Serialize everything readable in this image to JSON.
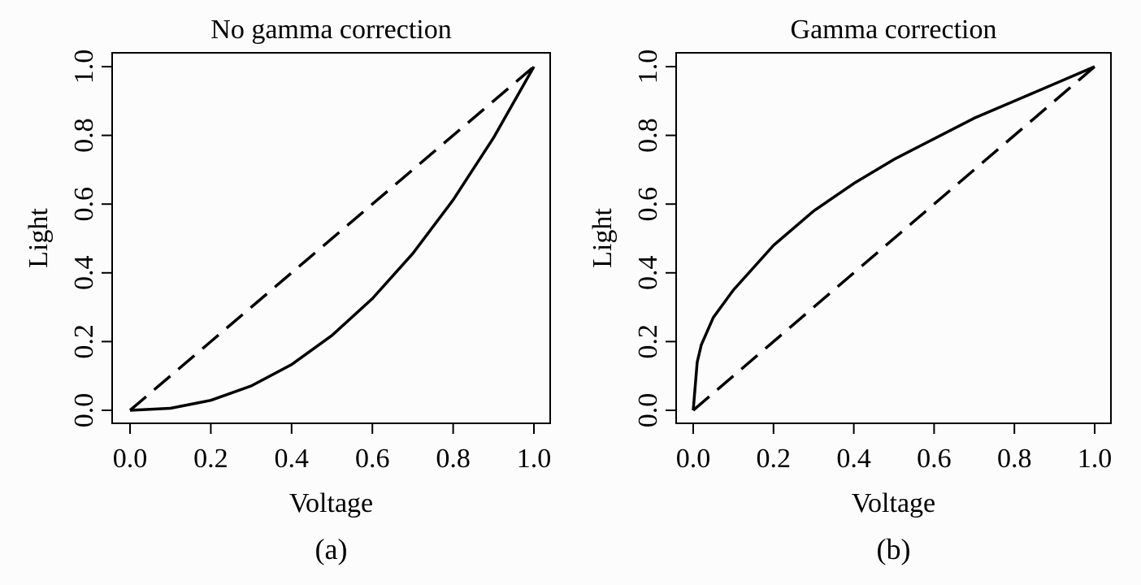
{
  "chart_data": [
    {
      "type": "line",
      "panel_label": "(a)",
      "title": "No gamma correction",
      "xlabel": "Voltage",
      "ylabel": "Light",
      "xlim": [
        0,
        1
      ],
      "ylim": [
        0,
        1
      ],
      "x_ticks": [
        "0.0",
        "0.2",
        "0.4",
        "0.6",
        "0.8",
        "1.0"
      ],
      "y_ticks": [
        "0.0",
        "0.2",
        "0.4",
        "0.6",
        "0.8",
        "1.0"
      ],
      "grid": false,
      "series": [
        {
          "style": "solid",
          "x": [
            0.0,
            0.1,
            0.2,
            0.3,
            0.4,
            0.5,
            0.6,
            0.7,
            0.8,
            0.9,
            1.0
          ],
          "y": [
            0.0,
            0.006,
            0.029,
            0.071,
            0.133,
            0.218,
            0.325,
            0.456,
            0.612,
            0.793,
            1.0
          ]
        },
        {
          "style": "dashed",
          "x": [
            0.0,
            1.0
          ],
          "y": [
            0.0,
            1.0
          ]
        }
      ]
    },
    {
      "type": "line",
      "panel_label": "(b)",
      "title": "Gamma correction",
      "xlabel": "Voltage",
      "ylabel": "Light",
      "xlim": [
        0,
        1
      ],
      "ylim": [
        0,
        1
      ],
      "x_ticks": [
        "0.0",
        "0.2",
        "0.4",
        "0.6",
        "0.8",
        "1.0"
      ],
      "y_ticks": [
        "0.0",
        "0.2",
        "0.4",
        "0.6",
        "0.8",
        "1.0"
      ],
      "grid": false,
      "series": [
        {
          "style": "solid",
          "x": [
            0.0,
            0.01,
            0.02,
            0.05,
            0.1,
            0.2,
            0.3,
            0.4,
            0.5,
            0.6,
            0.7,
            0.8,
            0.9,
            1.0
          ],
          "y": [
            0.0,
            0.14,
            0.19,
            0.27,
            0.35,
            0.48,
            0.58,
            0.66,
            0.73,
            0.79,
            0.85,
            0.9,
            0.95,
            1.0
          ]
        },
        {
          "style": "dashed",
          "x": [
            0.0,
            1.0
          ],
          "y": [
            0.0,
            1.0
          ]
        }
      ]
    }
  ]
}
